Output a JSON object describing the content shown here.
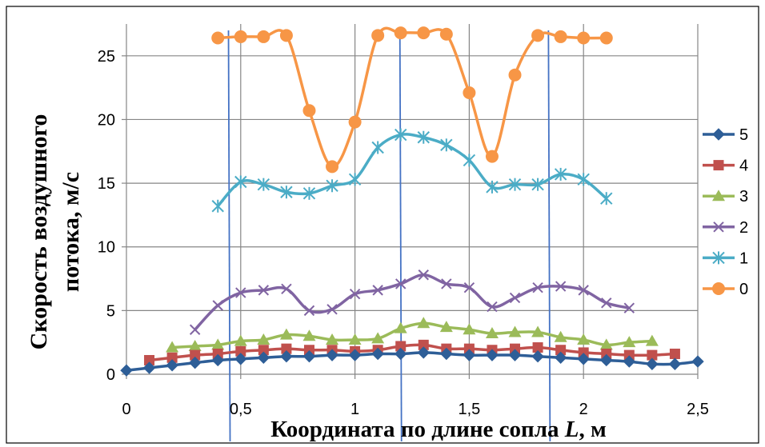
{
  "chart_data": {
    "type": "line",
    "xlabel": "Координата по длине сопла L, м",
    "xlabel_parts": {
      "main": "Координата по длине сопла ",
      "var": "L",
      "unit": ", м"
    },
    "ylabel_line1": "Скорость воздушного",
    "ylabel_line2": "потока, м/с",
    "xlim": [
      0,
      2.5
    ],
    "ylim": [
      0,
      27.5
    ],
    "x_ticks": [
      "0",
      "0,5",
      "1",
      "1,5",
      "2",
      "2,5"
    ],
    "x_tick_values": [
      0,
      0.5,
      1,
      1.5,
      2,
      2.5
    ],
    "y_ticks": [
      "0",
      "5",
      "10",
      "15",
      "20",
      "25"
    ],
    "y_tick_values": [
      0,
      5,
      10,
      15,
      20,
      25
    ],
    "grid": {
      "horizontal": true,
      "vertical": true
    },
    "legend_position": "right",
    "reference_lines_x": [
      0.45,
      1.2,
      1.85
    ],
    "reference_line_color": "#4472c4",
    "series": [
      {
        "name": "5",
        "color": "#2e5e97",
        "marker": "diamond",
        "x": [
          0,
          0.1,
          0.2,
          0.3,
          0.4,
          0.5,
          0.6,
          0.7,
          0.8,
          0.9,
          1.0,
          1.1,
          1.2,
          1.3,
          1.4,
          1.5,
          1.6,
          1.7,
          1.8,
          1.9,
          2.0,
          2.1,
          2.2,
          2.3,
          2.4,
          2.5
        ],
        "y": [
          0.3,
          0.5,
          0.7,
          0.9,
          1.1,
          1.2,
          1.3,
          1.4,
          1.4,
          1.5,
          1.5,
          1.6,
          1.6,
          1.7,
          1.6,
          1.5,
          1.5,
          1.5,
          1.4,
          1.3,
          1.2,
          1.1,
          1.0,
          0.8,
          0.8,
          1.0
        ]
      },
      {
        "name": "4",
        "color": "#c0504d",
        "marker": "square",
        "x": [
          0.1,
          0.2,
          0.3,
          0.4,
          0.5,
          0.6,
          0.7,
          0.8,
          0.9,
          1.0,
          1.1,
          1.2,
          1.3,
          1.4,
          1.5,
          1.6,
          1.7,
          1.8,
          1.9,
          2.0,
          2.1,
          2.2,
          2.3,
          2.4
        ],
        "y": [
          1.1,
          1.3,
          1.5,
          1.6,
          1.8,
          1.9,
          2.0,
          1.9,
          1.9,
          1.8,
          1.9,
          2.2,
          2.3,
          2.0,
          2.0,
          1.9,
          2.0,
          2.1,
          1.9,
          1.7,
          1.6,
          1.5,
          1.5,
          1.6
        ]
      },
      {
        "name": "3",
        "color": "#9bbb59",
        "marker": "triangle",
        "x": [
          0.2,
          0.3,
          0.4,
          0.5,
          0.6,
          0.7,
          0.8,
          0.9,
          1.0,
          1.1,
          1.2,
          1.3,
          1.4,
          1.5,
          1.6,
          1.7,
          1.8,
          1.9,
          2.0,
          2.1,
          2.2,
          2.3
        ],
        "y": [
          2.1,
          2.2,
          2.3,
          2.6,
          2.7,
          3.1,
          3.0,
          2.7,
          2.7,
          2.8,
          3.6,
          4.0,
          3.7,
          3.5,
          3.2,
          3.3,
          3.3,
          2.9,
          2.7,
          2.3,
          2.5,
          2.6
        ]
      },
      {
        "name": "2",
        "color": "#8064a2",
        "marker": "x",
        "x": [
          0.3,
          0.4,
          0.5,
          0.6,
          0.7,
          0.8,
          0.9,
          1.0,
          1.1,
          1.2,
          1.3,
          1.4,
          1.5,
          1.6,
          1.7,
          1.8,
          1.9,
          2.0,
          2.1,
          2.2
        ],
        "y": [
          3.5,
          5.4,
          6.4,
          6.6,
          6.7,
          5.0,
          5.1,
          6.3,
          6.6,
          7.1,
          7.8,
          7.1,
          6.8,
          5.3,
          6.0,
          6.8,
          6.9,
          6.6,
          5.6,
          5.2
        ]
      },
      {
        "name": "1",
        "color": "#4bacc6",
        "marker": "asterisk",
        "x": [
          0.4,
          0.5,
          0.6,
          0.7,
          0.8,
          0.9,
          1.0,
          1.1,
          1.2,
          1.3,
          1.4,
          1.5,
          1.6,
          1.7,
          1.8,
          1.9,
          2.0,
          2.1
        ],
        "y": [
          13.2,
          15.1,
          14.9,
          14.3,
          14.2,
          14.8,
          15.3,
          17.8,
          18.8,
          18.6,
          18.0,
          16.8,
          14.7,
          14.9,
          14.9,
          15.7,
          15.3,
          13.8
        ]
      },
      {
        "name": "0",
        "color": "#f79646",
        "marker": "circle",
        "x": [
          0.4,
          0.5,
          0.6,
          0.7,
          0.8,
          0.9,
          1.0,
          1.1,
          1.2,
          1.3,
          1.4,
          1.5,
          1.6,
          1.7,
          1.8,
          1.9,
          2.0,
          2.1
        ],
        "y": [
          26.4,
          26.5,
          26.5,
          26.6,
          20.7,
          16.3,
          19.8,
          26.6,
          26.8,
          26.8,
          26.7,
          22.1,
          17.1,
          23.5,
          26.6,
          26.5,
          26.4,
          26.4
        ]
      }
    ]
  }
}
